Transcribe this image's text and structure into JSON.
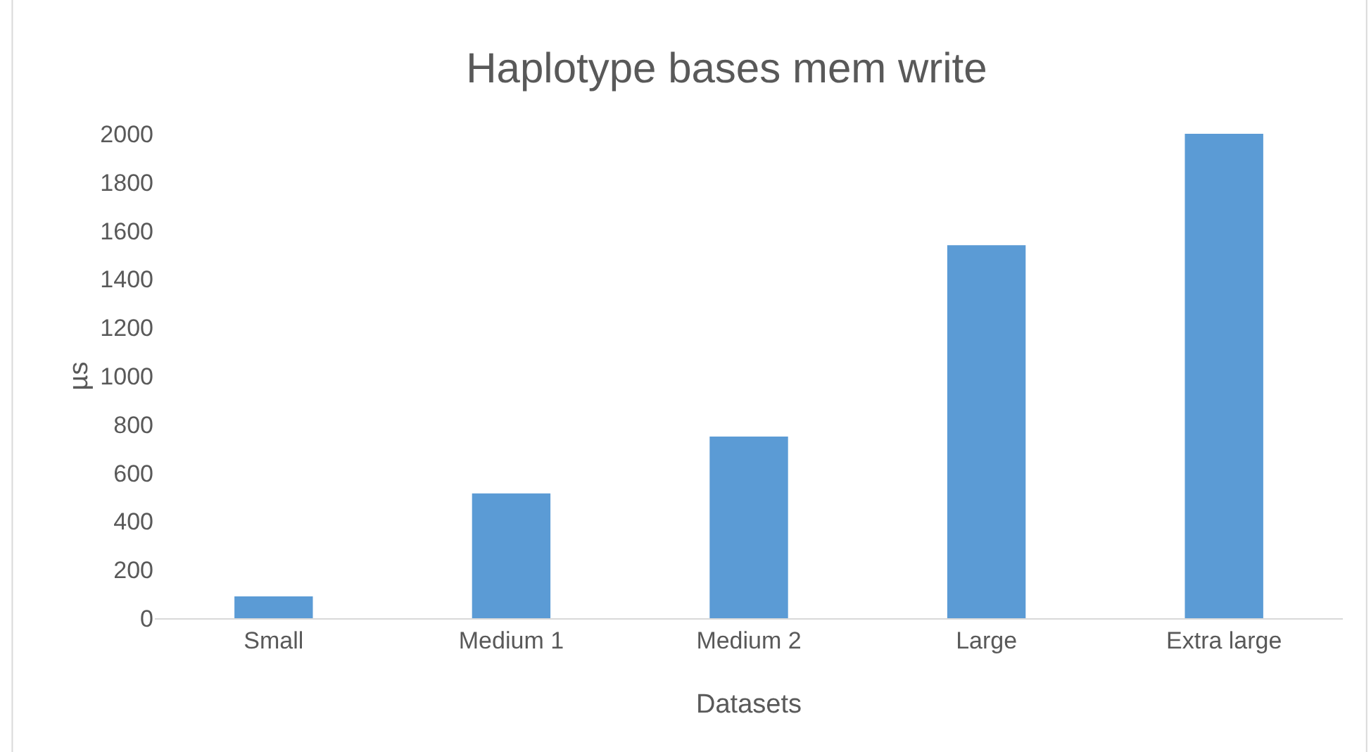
{
  "chart_data": {
    "type": "bar",
    "title": "Haplotype bases mem write",
    "xlabel": "Datasets",
    "ylabel": "µs",
    "categories": [
      "Small",
      "Medium 1",
      "Medium 2",
      "Large",
      "Extra large"
    ],
    "values": [
      90,
      515,
      750,
      1540,
      2000
    ],
    "color": "#5b9bd5",
    "ylim": [
      0,
      2000
    ],
    "yticks": [
      0,
      200,
      400,
      600,
      800,
      1000,
      1200,
      1400,
      1600,
      1800,
      2000
    ],
    "grid": false,
    "legend": false
  }
}
